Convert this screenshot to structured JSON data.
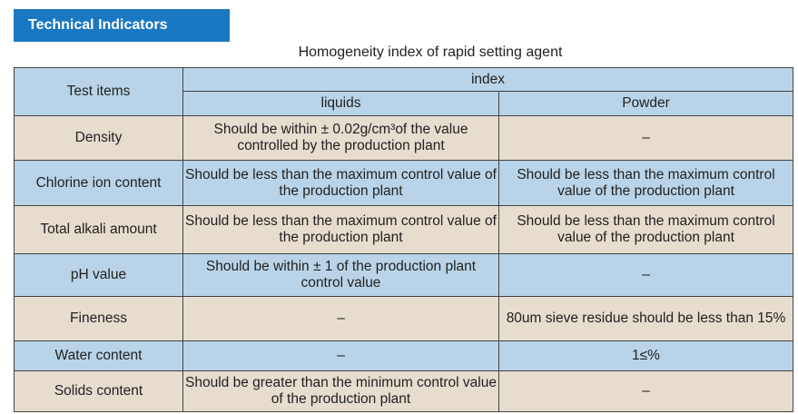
{
  "header": {
    "title": "Technical Indicators",
    "subtitle": "Homogeneity index of rapid setting agent"
  },
  "table": {
    "header": {
      "test_items": "Test items",
      "index": "index",
      "columns": [
        "liquids",
        "Powder"
      ]
    },
    "rows": [
      [
        "Density",
        "Should be within ± 0.02g/cm³of the value controlled by the production plant",
        "–"
      ],
      [
        "Chlorine ion content",
        "Should be less than the maximum control value of the production plant",
        "Should be less than the maximum control value of the production plant"
      ],
      [
        "Total alkali amount",
        "Should be less than the maximum control value of the production plant",
        "Should be less than the maximum control value of the production plant"
      ],
      [
        "pH value",
        "Should be within ± 1 of the production plant control value",
        "–"
      ],
      [
        "Fineness",
        "–",
        "80um sieve residue should be less than 15%"
      ],
      [
        "Water content",
        "–",
        "1≤%"
      ],
      [
        "Solids content",
        "Should be greater than the minimum control value of the production plant",
        "–"
      ]
    ]
  }
}
